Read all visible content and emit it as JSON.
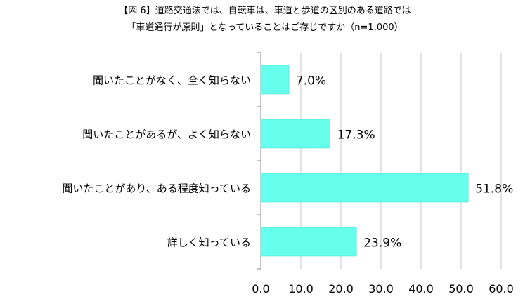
{
  "title_line1": "【図 6】道路交通法では、自転車は、車道と歩道の区別のある道路では",
  "title_line2": "「車道通行が原則」となっていることはご存じですか（n=1,000）",
  "colors": {
    "bar": "#66ffee",
    "bar_stroke": "#3fe0d0",
    "grid": "#c8c8c8",
    "axis": "#888888"
  },
  "chart_data": {
    "type": "bar",
    "orientation": "horizontal",
    "categories": [
      "聞いたことがなく、全く知らない",
      "聞いたことがあるが、よく知らない",
      "聞いたことがあり、ある程度知っている",
      "詳しく知っている"
    ],
    "values": [
      7.0,
      17.3,
      51.8,
      23.9
    ],
    "value_labels": [
      "7.0%",
      "17.3%",
      "51.8%",
      "23.9%"
    ],
    "xlim": [
      0,
      60
    ],
    "xticks": [
      0,
      10,
      20,
      30,
      40,
      50,
      60
    ],
    "xtick_labels": [
      "0.0",
      "10.0",
      "20.0",
      "30.0",
      "40.0",
      "50.0",
      "60.0"
    ],
    "grid": true
  }
}
